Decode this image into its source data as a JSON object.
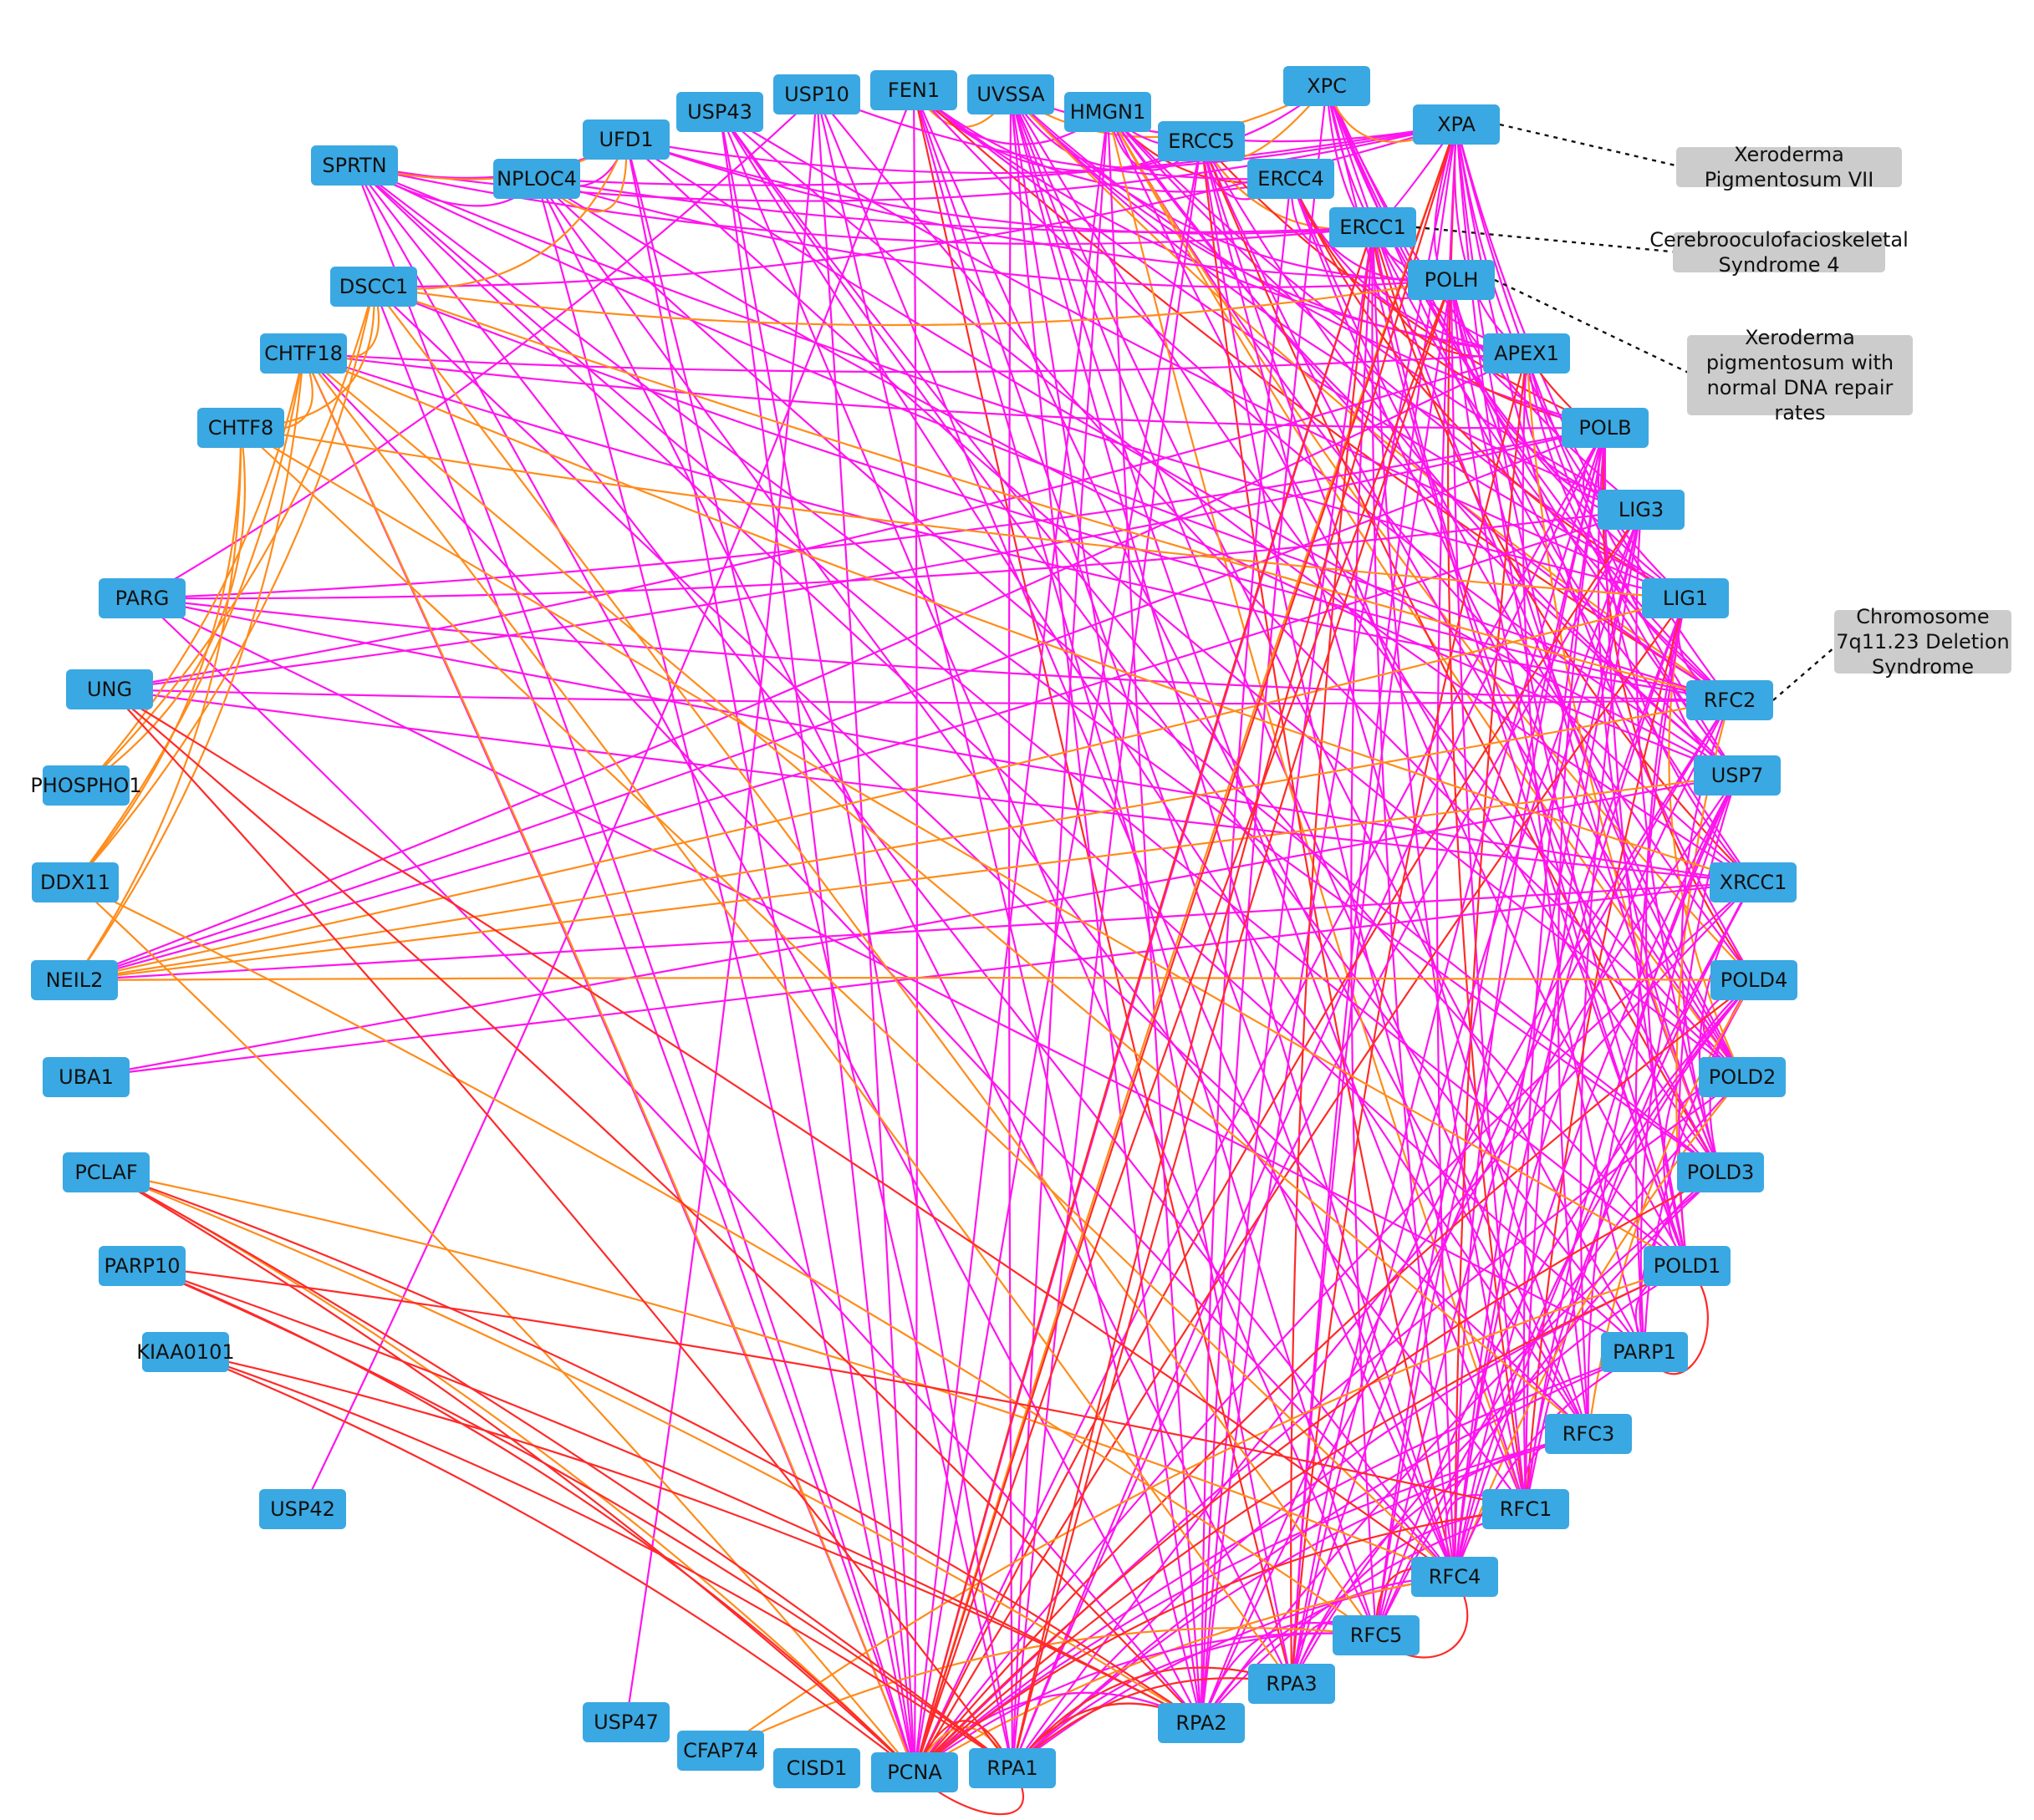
{
  "legend": {
    "edge_colors": {
      "ppi": "#ff14ee",
      "coexp": "#ff8c1a",
      "other": "#ff2a2a"
    },
    "node_color": "#3aa8e2",
    "disease_color": "#cccccc"
  },
  "nodes": [
    "SPRTN",
    "UFD1",
    "NPLOC4",
    "USP43",
    "USP10",
    "FEN1",
    "UVSSA",
    "HMGN1",
    "ERCC5",
    "XPC",
    "XPA",
    "ERCC4",
    "ERCC1",
    "POLH",
    "APEX1",
    "POLB",
    "LIG3",
    "LIG1",
    "RFC2",
    "USP7",
    "XRCC1",
    "POLD4",
    "POLD2",
    "POLD3",
    "POLD1",
    "PARP1",
    "RFC3",
    "RFC1",
    "RFC4",
    "RFC5",
    "RPA3",
    "RPA2",
    "RPA1",
    "PCNA",
    "CISD1",
    "CFAP74",
    "USP47",
    "USP42",
    "KIAA0101",
    "PARP10",
    "PCLAF",
    "UBA1",
    "NEIL2",
    "DDX11",
    "PHOSPHO1",
    "UNG",
    "PARG",
    "CHTF8",
    "CHTF18",
    "DSCC1"
  ],
  "diseases": [
    {
      "text": [
        "Xeroderma",
        "Pigmentosum VII"
      ],
      "gene": "XPA"
    },
    {
      "text": [
        "Cerebrooculofacioskeletal",
        "Syndrome 4"
      ],
      "gene": "ERCC1"
    },
    {
      "text": [
        "Xeroderma",
        "pigmentosum with",
        "normal DNA repair",
        "rates"
      ],
      "gene": "POLH"
    },
    {
      "text": [
        "Chromosome",
        "7q11.23 Deletion",
        "Syndrome"
      ],
      "gene": "RFC2"
    }
  ]
}
